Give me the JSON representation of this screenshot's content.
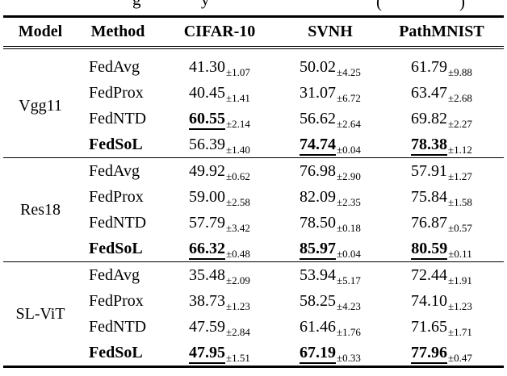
{
  "colors": {
    "text": "#000000",
    "background": "#ffffff",
    "rule": "#000000"
  },
  "caption": {
    "fragments": [
      "g",
      "y",
      "(",
      ")"
    ]
  },
  "table": {
    "headers": [
      "Model",
      "Method",
      "CIFAR-10",
      "SVNH",
      "PathMNIST"
    ],
    "groups": [
      {
        "model": "Vgg11",
        "rows": [
          {
            "method": "FedAvg",
            "cells": [
              {
                "v": "41.30",
                "s": "±1.07"
              },
              {
                "v": "50.02",
                "s": "±4.25"
              },
              {
                "v": "61.79",
                "s": "±9.88"
              }
            ]
          },
          {
            "method": "FedProx",
            "cells": [
              {
                "v": "40.45",
                "s": "±1.41"
              },
              {
                "v": "31.07",
                "s": "±6.72"
              },
              {
                "v": "63.47",
                "s": "±2.68"
              }
            ]
          },
          {
            "method": "FedNTD",
            "cells": [
              {
                "v": "60.55",
                "s": "±2.14"
              },
              {
                "v": "56.62",
                "s": "±2.64"
              },
              {
                "v": "69.82",
                "s": "±2.27"
              }
            ]
          },
          {
            "method": "FedSoL",
            "cells": [
              {
                "v": "56.39",
                "s": "±1.40"
              },
              {
                "v": "74.74",
                "s": "±0.04"
              },
              {
                "v": "78.38",
                "s": "±1.12"
              }
            ]
          }
        ]
      },
      {
        "model": "Res18",
        "rows": [
          {
            "method": "FedAvg",
            "cells": [
              {
                "v": "49.92",
                "s": "±0.62"
              },
              {
                "v": "76.98",
                "s": "±2.90"
              },
              {
                "v": "57.91",
                "s": "±1.27"
              }
            ]
          },
          {
            "method": "FedProx",
            "cells": [
              {
                "v": "59.00",
                "s": "±2.58"
              },
              {
                "v": "82.09",
                "s": "±2.35"
              },
              {
                "v": "75.84",
                "s": "±1.58"
              }
            ]
          },
          {
            "method": "FedNTD",
            "cells": [
              {
                "v": "57.79",
                "s": "±3.42"
              },
              {
                "v": "78.50",
                "s": "±0.18"
              },
              {
                "v": "76.87",
                "s": "±0.57"
              }
            ]
          },
          {
            "method": "FedSoL",
            "cells": [
              {
                "v": "66.32",
                "s": "±0.48"
              },
              {
                "v": "85.97",
                "s": "±0.04"
              },
              {
                "v": "80.59",
                "s": "±0.11"
              }
            ]
          }
        ]
      },
      {
        "model": "SL-ViT",
        "rows": [
          {
            "method": "FedAvg",
            "cells": [
              {
                "v": "35.48",
                "s": "±2.09"
              },
              {
                "v": "53.94",
                "s": "±5.17"
              },
              {
                "v": "72.44",
                "s": "±1.91"
              }
            ]
          },
          {
            "method": "FedProx",
            "cells": [
              {
                "v": "38.73",
                "s": "±1.23"
              },
              {
                "v": "58.25",
                "s": "±4.23"
              },
              {
                "v": "74.10",
                "s": "±1.23"
              }
            ]
          },
          {
            "method": "FedNTD",
            "cells": [
              {
                "v": "47.59",
                "s": "±2.84"
              },
              {
                "v": "61.46",
                "s": "±1.76"
              },
              {
                "v": "71.65",
                "s": "±1.71"
              }
            ]
          },
          {
            "method": "FedSoL",
            "cells": [
              {
                "v": "47.95",
                "s": "±1.51"
              },
              {
                "v": "67.19",
                "s": "±0.33"
              },
              {
                "v": "77.96",
                "s": "±0.47"
              }
            ]
          }
        ]
      }
    ]
  }
}
